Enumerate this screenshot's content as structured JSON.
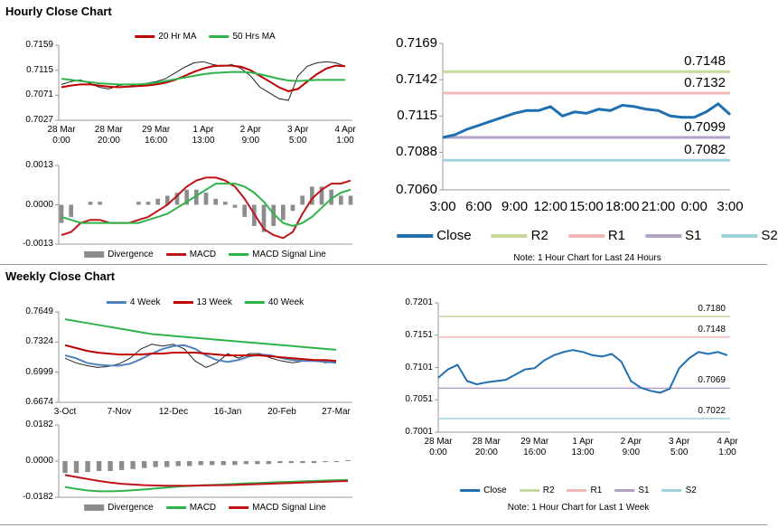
{
  "sections": [
    "Hourly Close Chart",
    "Weekly Close Chart"
  ],
  "chart_data": [
    {
      "type": "line",
      "legend": "top",
      "categories": [
        "28 Mar\n0:00",
        null,
        null,
        null,
        null,
        "28 Mar\n20:00",
        null,
        null,
        null,
        null,
        "29 Mar\n16:00",
        null,
        null,
        null,
        null,
        "1 Apr\n13:00",
        null,
        null,
        null,
        null,
        "2 Apr\n9:00",
        null,
        null,
        null,
        null,
        "3 Apr\n5:00",
        null,
        null,
        null,
        null,
        "4 Apr\n1:00"
      ],
      "ylim": [
        0.7027,
        0.7159
      ],
      "yticks": [
        0.7027,
        0.7071,
        0.7115,
        0.7159
      ],
      "series": [
        {
          "color": "#222222",
          "values": [
            0.709,
            0.7095,
            0.7098,
            0.7092,
            0.7085,
            0.7082,
            0.7088,
            0.709,
            0.7087,
            0.7092,
            0.7095,
            0.71,
            0.711,
            0.712,
            0.7128,
            0.713,
            0.7125,
            0.7122,
            0.7125,
            0.7118,
            0.7105,
            0.7085,
            0.7075,
            0.7065,
            0.7062,
            0.7105,
            0.7122,
            0.7128,
            0.713,
            0.7128,
            0.7122
          ]
        },
        {
          "name": "20 Hr MA",
          "color": "#c00000",
          "values": [
            0.7085,
            0.7088,
            0.709,
            0.709,
            0.7088,
            0.7086,
            0.7085,
            0.7086,
            0.7087,
            0.7088,
            0.709,
            0.7093,
            0.7098,
            0.7105,
            0.7112,
            0.7118,
            0.7122,
            0.7123,
            0.7123,
            0.7121,
            0.7115,
            0.7105,
            0.7095,
            0.7085,
            0.7078,
            0.7082,
            0.7095,
            0.7108,
            0.7118,
            0.7123,
            0.7122
          ]
        },
        {
          "name": "50 Hrs MA",
          "color": "#2eb34a",
          "values": [
            0.71,
            0.7098,
            0.7096,
            0.7094,
            0.7092,
            0.7091,
            0.709,
            0.709,
            0.709,
            0.7091,
            0.7093,
            0.7096,
            0.7099,
            0.7102,
            0.7105,
            0.7108,
            0.711,
            0.7111,
            0.7112,
            0.7112,
            0.7111,
            0.7108,
            0.7104,
            0.71,
            0.7097,
            0.7096,
            0.7097,
            0.7098,
            0.7098,
            0.7098,
            0.7098
          ]
        }
      ]
    },
    {
      "type": "line",
      "legend": "bottom",
      "ylim": [
        -0.0013,
        0.0013
      ],
      "yticks": [
        -0.0013,
        {
          "value": 0,
          "label": "0.0000"
        },
        0.0013
      ],
      "series": [
        {
          "name": "Divergence",
          "type": "bar",
          "color": "#8c8c8c",
          "values": [
            -0.0006,
            -0.0004,
            0,
            0.0001,
            0.0001,
            0,
            0,
            0,
            0.0001,
            0.0001,
            0.0002,
            0.0003,
            0.0004,
            0.0005,
            0.0005,
            0.0004,
            0.0002,
            0.0001,
            -0.0001,
            -0.0004,
            -0.0007,
            -0.0009,
            -0.0007,
            -0.0005,
            -0.0002,
            0.0003,
            0.0006,
            0.0006,
            0.0005,
            0.0003,
            0.0003
          ]
        },
        {
          "name": "MACD",
          "color": "#c0141c",
          "values": [
            -0.001,
            -0.0009,
            -0.0006,
            -0.0005,
            -0.0005,
            -0.0006,
            -0.0006,
            -0.0006,
            -0.0005,
            -0.0004,
            -0.0002,
            0,
            0.0003,
            0.0006,
            0.0008,
            0.0009,
            0.0009,
            0.0008,
            0.0006,
            0.0002,
            -0.0003,
            -0.0008,
            -0.001,
            -0.0011,
            -0.0009,
            -0.0003,
            0.0002,
            0.0005,
            0.0007,
            0.0007,
            0.0008
          ]
        },
        {
          "name": "MACD Signal Line",
          "color": "#2eb34a",
          "values": [
            -0.0004,
            -0.0005,
            -0.0006,
            -0.0006,
            -0.0006,
            -0.0006,
            -0.0006,
            -0.0006,
            -0.0006,
            -0.0005,
            -0.0004,
            -0.0003,
            -0.0001,
            0.0001,
            0.0003,
            0.0005,
            0.0007,
            0.0007,
            0.0007,
            0.0006,
            0.0004,
            0.0001,
            -0.0003,
            -0.0006,
            -0.0007,
            -0.0006,
            -0.0004,
            -0.0001,
            0.0002,
            0.0004,
            0.0005
          ]
        }
      ]
    },
    {
      "type": "line",
      "legend": "bottom",
      "note": "Note: 1 Hour Chart for Last 24 Hours",
      "categories": [
        "3:00",
        null,
        null,
        "6:00",
        null,
        null,
        "9:00",
        null,
        null,
        "12:00",
        null,
        null,
        "15:00",
        null,
        null,
        "18:00",
        null,
        null,
        "21:00",
        null,
        null,
        "0:00",
        null,
        null,
        "3:00"
      ],
      "ylim": [
        0.706,
        0.7169
      ],
      "yticks": [
        {
          "value": 0.706,
          "label": "0.7060"
        },
        0.7088,
        0.7115,
        0.7142,
        0.7169
      ],
      "series": [
        {
          "name": "Close",
          "color": "#1f6fb3",
          "values": [
            0.7099,
            0.7101,
            0.7105,
            0.7108,
            0.7111,
            0.7114,
            0.7117,
            0.7119,
            0.7119,
            0.7122,
            0.7115,
            0.7118,
            0.7117,
            0.712,
            0.7119,
            0.7123,
            0.7122,
            0.712,
            0.7119,
            0.7115,
            0.7114,
            0.7114,
            0.7118,
            0.7124,
            0.7116
          ]
        }
      ],
      "levels": [
        {
          "name": "R2",
          "color": "#c6d99a",
          "value": 0.7148
        },
        {
          "name": "R1",
          "color": "#f2b8b8",
          "value": 0.7132
        },
        {
          "name": "S1",
          "color": "#b3a2c7",
          "value": 0.7099
        },
        {
          "name": "S2",
          "color": "#9fd3dc",
          "value": 0.7082
        }
      ]
    },
    {
      "type": "line",
      "legend": "top",
      "categories": [
        "3-Oct",
        null,
        null,
        null,
        null,
        "7-Nov",
        null,
        null,
        null,
        null,
        "12-Dec",
        null,
        null,
        null,
        null,
        "16-Jan",
        null,
        null,
        null,
        null,
        "20-Feb",
        null,
        null,
        null,
        null,
        "27-Mar"
      ],
      "ylim": [
        0.6674,
        0.7649
      ],
      "yticks": [
        0.6674,
        0.6999,
        0.7324,
        0.7649
      ],
      "series": [
        {
          "color": "#222222",
          "values": [
            0.715,
            0.71,
            0.707,
            0.705,
            0.706,
            0.709,
            0.715,
            0.725,
            0.73,
            0.728,
            0.73,
            0.725,
            0.712,
            0.705,
            0.71,
            0.72,
            0.715,
            0.72,
            0.72,
            0.715,
            0.712,
            0.71,
            0.712,
            0.713,
            0.71,
            0.711
          ]
        },
        {
          "name": "4 Week",
          "color": "#4f81bd",
          "values": [
            0.718,
            0.715,
            0.71,
            0.708,
            0.707,
            0.707,
            0.709,
            0.714,
            0.72,
            0.725,
            0.728,
            0.729,
            0.725,
            0.718,
            0.713,
            0.711,
            0.713,
            0.717,
            0.719,
            0.718,
            0.715,
            0.713,
            0.712,
            0.712,
            0.711,
            0.71
          ]
        },
        {
          "name": "13 Week",
          "color": "#c00000",
          "values": [
            0.729,
            0.726,
            0.723,
            0.721,
            0.72,
            0.719,
            0.719,
            0.719,
            0.72,
            0.72,
            0.721,
            0.721,
            0.721,
            0.72,
            0.719,
            0.718,
            0.718,
            0.718,
            0.718,
            0.717,
            0.716,
            0.715,
            0.714,
            0.713,
            0.713,
            0.712
          ]
        },
        {
          "name": "40 Week",
          "color": "#2eb34a",
          "values": [
            0.757,
            0.755,
            0.753,
            0.751,
            0.749,
            0.747,
            0.745,
            0.743,
            0.741,
            0.74,
            0.739,
            0.738,
            0.737,
            0.736,
            0.735,
            0.734,
            0.733,
            0.732,
            0.731,
            0.73,
            0.729,
            0.728,
            0.727,
            0.726,
            0.725,
            0.724
          ]
        }
      ]
    },
    {
      "type": "line",
      "legend": "bottom",
      "ylim": [
        -0.0182,
        0.0182
      ],
      "yticks": [
        -0.0182,
        {
          "value": 0,
          "label": "0.0000"
        },
        0.0182
      ],
      "series": [
        {
          "name": "Divergence",
          "type": "bar",
          "color": "#8c8c8c",
          "values": [
            -0.006,
            -0.006,
            -0.0055,
            -0.005,
            -0.005,
            -0.0045,
            -0.004,
            -0.0035,
            -0.003,
            -0.003,
            -0.0025,
            -0.0025,
            -0.002,
            -0.002,
            -0.002,
            -0.002,
            -0.0015,
            -0.0015,
            -0.0015,
            -0.001,
            -0.001,
            -0.001,
            -0.001,
            -0.0005,
            -0.0005,
            0.0005
          ]
        },
        {
          "name": "MACD",
          "color": "#2eb34a",
          "values": [
            -0.013,
            -0.014,
            -0.0148,
            -0.0152,
            -0.0152,
            -0.015,
            -0.0147,
            -0.0143,
            -0.0138,
            -0.0133,
            -0.0128,
            -0.0125,
            -0.0122,
            -0.012,
            -0.0118,
            -0.0115,
            -0.0112,
            -0.011,
            -0.0108,
            -0.0106,
            -0.0104,
            -0.0102,
            -0.01,
            -0.0098,
            -0.0096,
            -0.0095
          ]
        },
        {
          "name": "MACD Signal Line",
          "color": "#c0141c",
          "values": [
            -0.007,
            -0.008,
            -0.009,
            -0.01,
            -0.0108,
            -0.0114,
            -0.0118,
            -0.0121,
            -0.0123,
            -0.0124,
            -0.0124,
            -0.0124,
            -0.0123,
            -0.0122,
            -0.0121,
            -0.012,
            -0.0118,
            -0.0116,
            -0.0114,
            -0.0112,
            -0.011,
            -0.0108,
            -0.0106,
            -0.0104,
            -0.0102,
            -0.01
          ]
        }
      ]
    },
    {
      "type": "line",
      "legend": "bottom",
      "note": "Note: 1 Hour Chart for Last 1 Week",
      "categories": [
        "28 Mar\n0:00",
        null,
        null,
        null,
        null,
        "28 Mar\n20:00",
        null,
        null,
        null,
        null,
        "29 Mar\n16:00",
        null,
        null,
        null,
        null,
        "1 Apr\n13:00",
        null,
        null,
        null,
        null,
        "2 Apr\n9:00",
        null,
        null,
        null,
        null,
        "3 Apr\n5:00",
        null,
        null,
        null,
        null,
        "4 Apr\n1:00"
      ],
      "ylim": [
        0.7001,
        0.7201
      ],
      "yticks": [
        0.7001,
        0.7051,
        0.7101,
        0.7151,
        0.7201
      ],
      "series": [
        {
          "name": "Close",
          "color": "#1f6fb3",
          "values": [
            0.7085,
            0.7098,
            0.7105,
            0.708,
            0.7075,
            0.7078,
            0.708,
            0.7082,
            0.709,
            0.7098,
            0.71,
            0.7112,
            0.712,
            0.7125,
            0.7128,
            0.7125,
            0.712,
            0.7118,
            0.7122,
            0.711,
            0.708,
            0.707,
            0.7065,
            0.7062,
            0.7068,
            0.71,
            0.7115,
            0.7125,
            0.7122,
            0.7125,
            0.712
          ]
        }
      ],
      "levels": [
        {
          "name": "R2",
          "color": "#c6d99a",
          "value": 0.718,
          "value_label": "0.7180"
        },
        {
          "name": "R1",
          "color": "#f2b8b8",
          "value": 0.7148
        },
        {
          "name": "S1",
          "color": "#b3a2c7",
          "value": 0.7069
        },
        {
          "name": "S2",
          "color": "#9fd3dc",
          "value": 0.7022
        }
      ]
    }
  ]
}
